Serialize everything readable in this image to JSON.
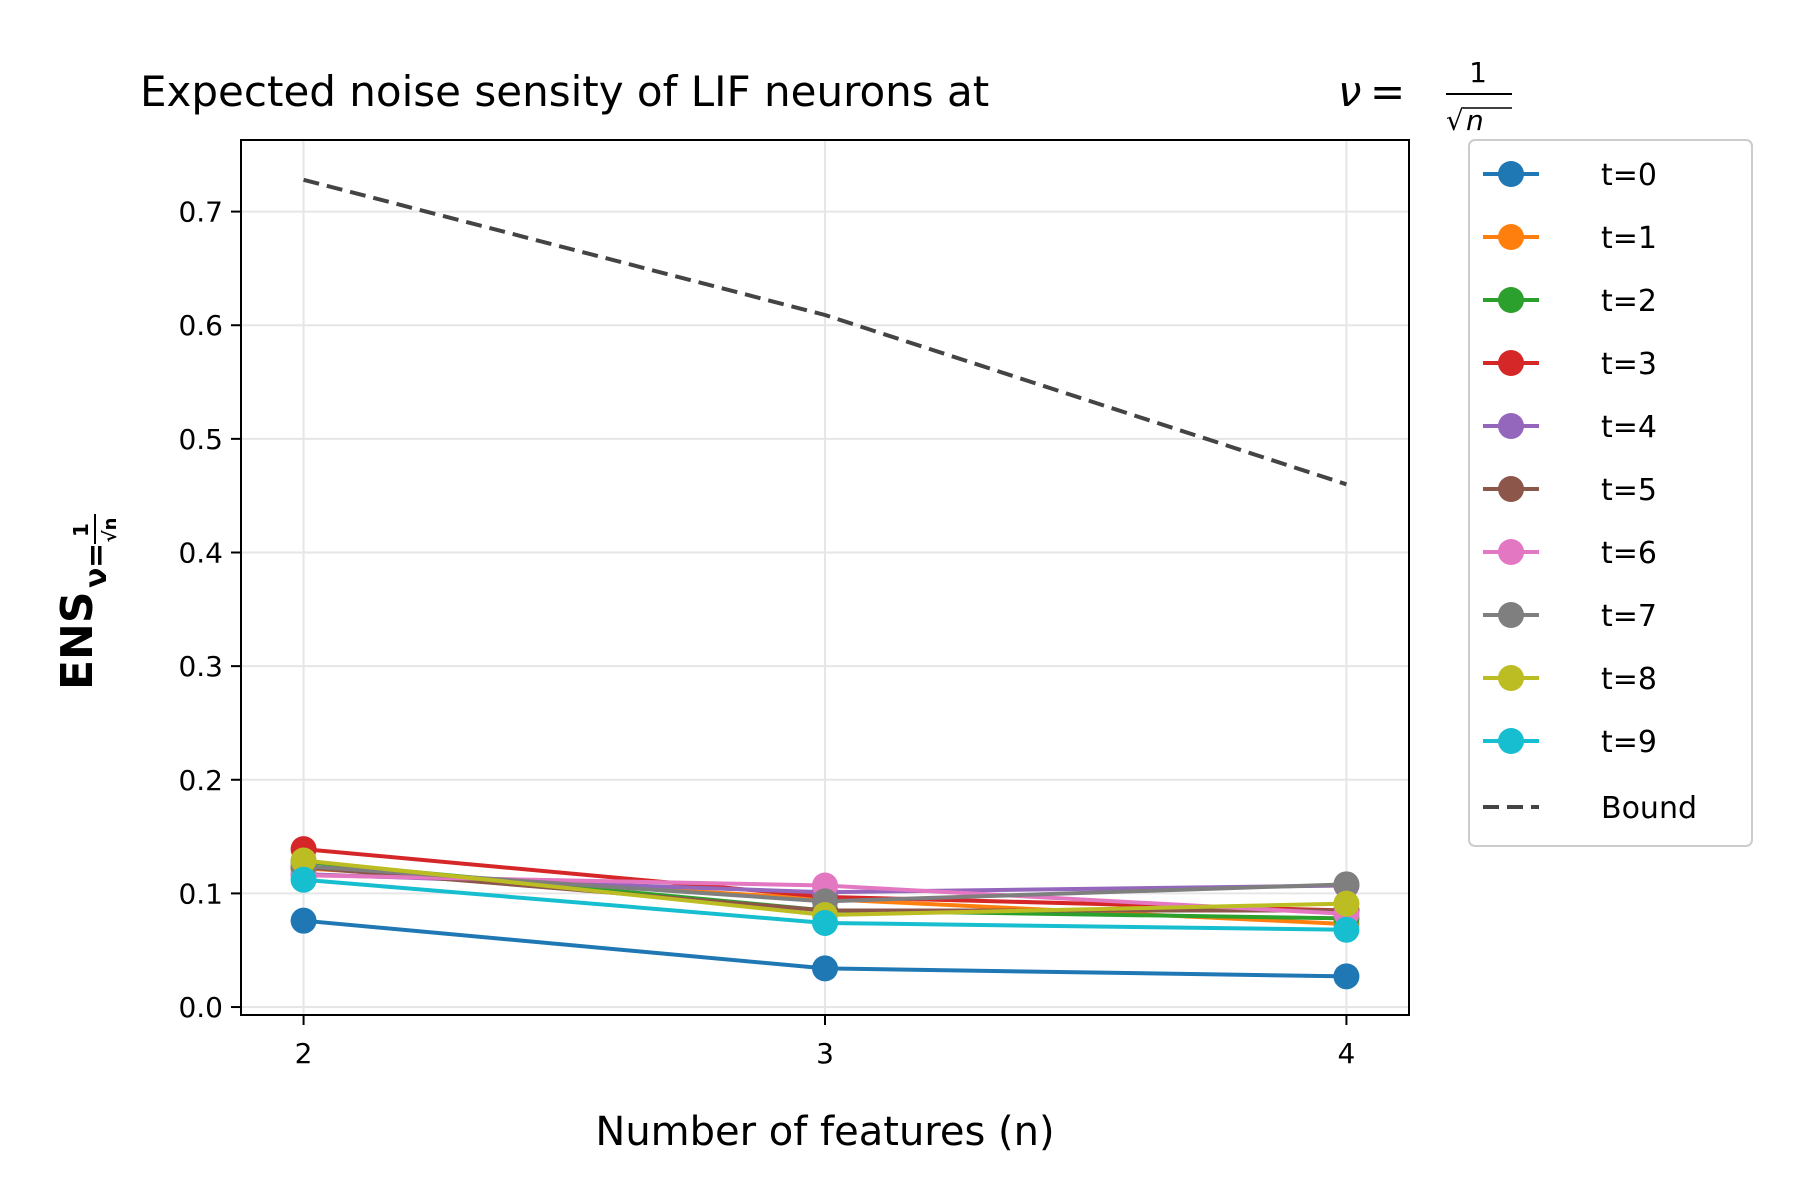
{
  "chart_data": {
    "type": "line",
    "title": "Expected noise sensity of LIF neurons at",
    "title_math": {
      "symbol": "ν",
      "equals": "=",
      "numerator": "1",
      "denominator": "n",
      "radical": "√"
    },
    "xlabel": "Number of features (n)",
    "ylabel": {
      "main": "ENS",
      "symbol": "ν",
      "equals": "=",
      "numerator": "1",
      "denominator": "√n"
    },
    "x": [
      2,
      3,
      4
    ],
    "xticks": [
      "2",
      "3",
      "4"
    ],
    "xlim": [
      1.88,
      4.12
    ],
    "ylim": [
      -0.007,
      0.763
    ],
    "yticks": [
      0.0,
      0.1,
      0.2,
      0.3,
      0.4,
      0.5,
      0.6,
      0.7
    ],
    "ytick_labels": [
      "0.0",
      "0.1",
      "0.2",
      "0.3",
      "0.4",
      "0.5",
      "0.6",
      "0.7"
    ],
    "grid": true,
    "legend_position": "outside-right",
    "series": [
      {
        "name": "t=0",
        "color": "#1f77b4",
        "values": [
          0.076,
          0.034,
          0.027
        ]
      },
      {
        "name": "t=1",
        "color": "#ff7f0e",
        "values": [
          0.122,
          0.095,
          0.073
        ]
      },
      {
        "name": "t=2",
        "color": "#2ca02c",
        "values": [
          0.128,
          0.085,
          0.078
        ]
      },
      {
        "name": "t=3",
        "color": "#d62728",
        "values": [
          0.139,
          0.097,
          0.085
        ]
      },
      {
        "name": "t=4",
        "color": "#9467bd",
        "values": [
          0.117,
          0.101,
          0.107
        ]
      },
      {
        "name": "t=5",
        "color": "#8c564b",
        "values": [
          0.123,
          0.085,
          0.085
        ]
      },
      {
        "name": "t=6",
        "color": "#e377c2",
        "values": [
          0.116,
          0.107,
          0.082
        ]
      },
      {
        "name": "t=7",
        "color": "#7f7f7f",
        "values": [
          0.124,
          0.093,
          0.108
        ]
      },
      {
        "name": "t=8",
        "color": "#bcbd22",
        "values": [
          0.129,
          0.081,
          0.091
        ]
      },
      {
        "name": "t=9",
        "color": "#17becf",
        "values": [
          0.112,
          0.074,
          0.068
        ]
      }
    ],
    "bound": {
      "name": "Bound",
      "color": "#444444",
      "values": [
        0.728,
        0.609,
        0.46
      ]
    }
  }
}
